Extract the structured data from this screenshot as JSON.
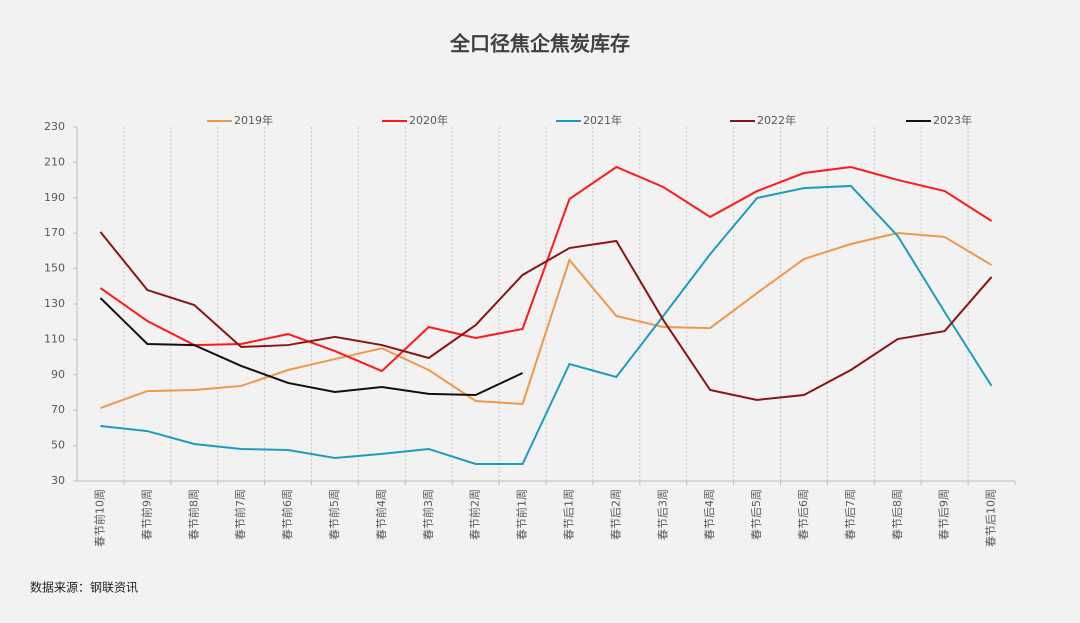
{
  "chart_data": {
    "type": "line",
    "title": "全口径焦企焦炭库存",
    "source": "数据来源：钢联资讯",
    "categories": [
      "春节前10周",
      "春节前9周",
      "春节前8周",
      "春节前7周",
      "春节前6周",
      "春节前5周",
      "春节前4周",
      "春节前3周",
      "春节前2周",
      "春节前1周",
      "春节后1周",
      "春节后2周",
      "春节后3周",
      "春节后4周",
      "春节后5周",
      "春节后6周",
      "春节后7周",
      "春节后8周",
      "春节后9周",
      "春节后10周"
    ],
    "series": [
      {
        "name": "2019年",
        "color": "#f0984a",
        "values": [
          71.2,
          80.8,
          81.4,
          83.7,
          92.7,
          98.9,
          105,
          92.7,
          75.2,
          73.5,
          154.9,
          123.2,
          117,
          116.4,
          136.2,
          155.4,
          163.9,
          170.1,
          167.9,
          152
        ]
      },
      {
        "name": "2020年",
        "color": "#ff1a1a",
        "values": [
          139,
          120.4,
          106.8,
          107.4,
          113,
          103.4,
          92.1,
          117,
          110.8,
          115.9,
          189.3,
          207.4,
          196.1,
          179.2,
          193.8,
          204,
          207.4,
          200.1,
          193.8,
          176.9
        ]
      },
      {
        "name": "2021年",
        "color": "#1f9bc2",
        "values": [
          61.1,
          58.2,
          50.9,
          48.1,
          47.5,
          43,
          45.3,
          48.1,
          39.6,
          39.6,
          96.1,
          88.8,
          123.2,
          158.2,
          189.9,
          195.5,
          196.7,
          168.4,
          125.5,
          83.7
        ]
      },
      {
        "name": "2022年",
        "color": "#8b1515",
        "values": [
          170.7,
          137.9,
          129.4,
          105.7,
          106.8,
          111.4,
          106.8,
          99.5,
          118.1,
          146.4,
          161.6,
          165.6,
          121,
          81.4,
          75.8,
          78.6,
          92.7,
          110.2,
          114.7,
          145.3
        ]
      },
      {
        "name": "2023年",
        "color": "#111111",
        "values": [
          133.4,
          107.4,
          106.8,
          95,
          85.4,
          80.3,
          83.1,
          79.2,
          78.6,
          91,
          null,
          null,
          null,
          null,
          null,
          null,
          null,
          null,
          null,
          null
        ]
      }
    ],
    "ylim": [
      30,
      230
    ],
    "yticks": [
      30,
      50,
      70,
      90,
      110,
      130,
      150,
      170,
      190,
      210,
      230
    ],
    "grid": true,
    "legend": "top"
  }
}
